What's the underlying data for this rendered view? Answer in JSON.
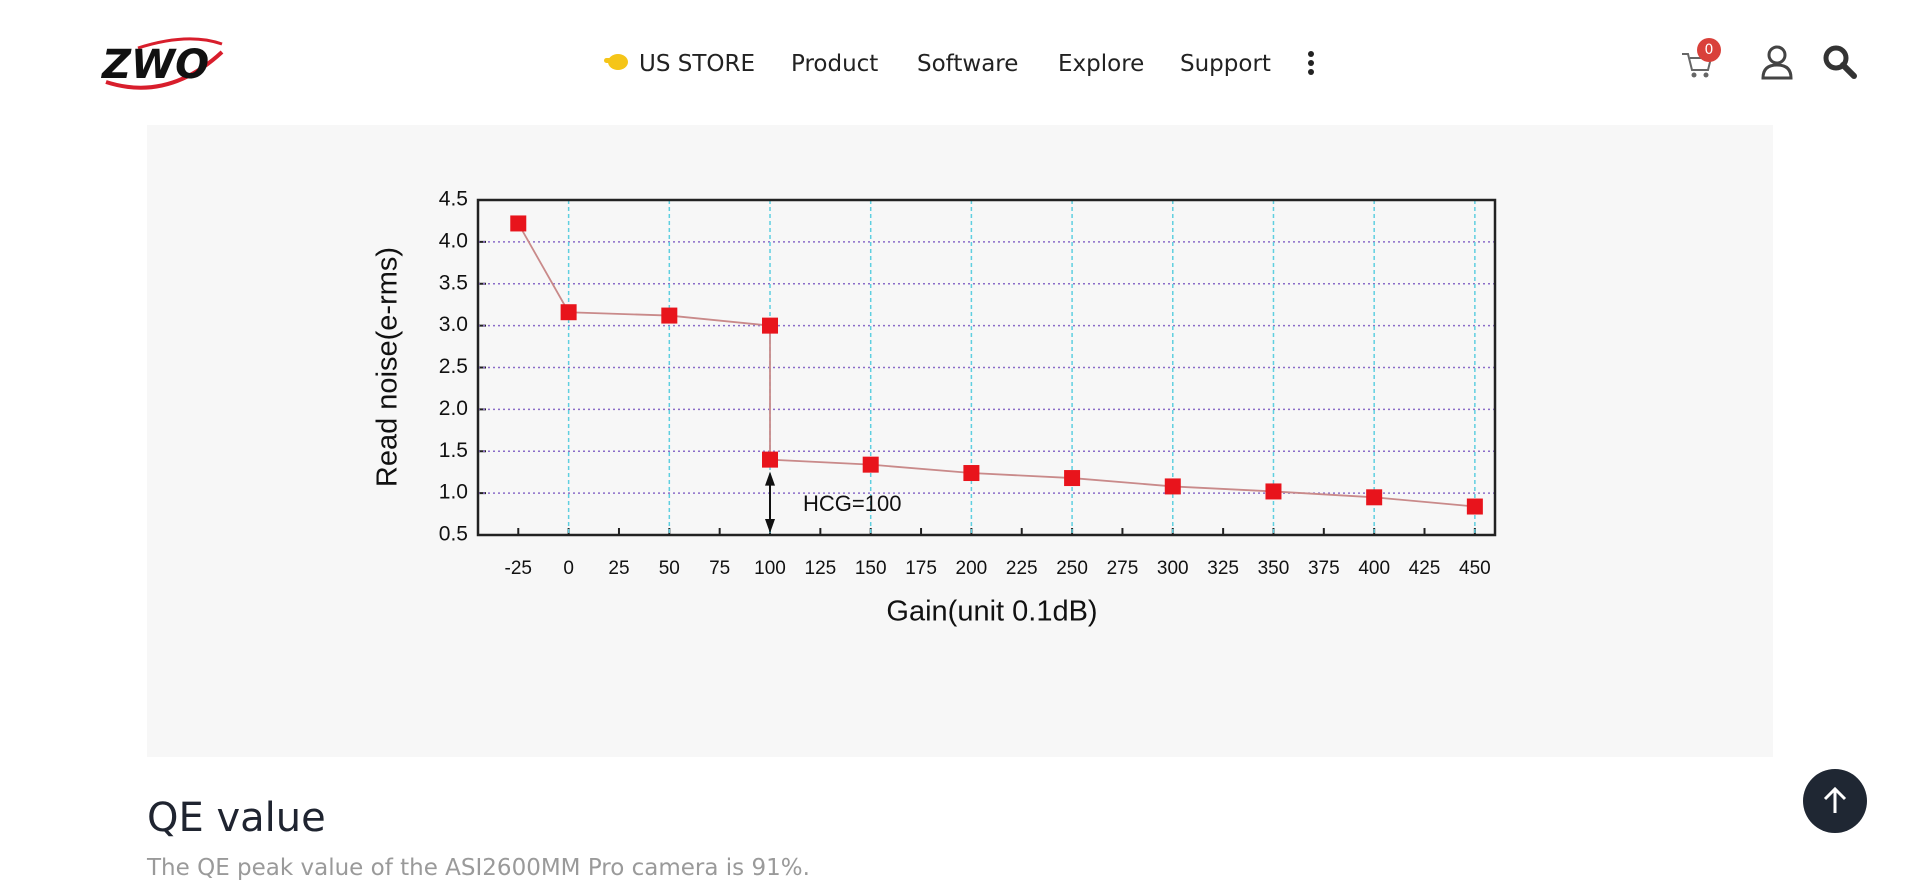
{
  "header": {
    "logo": "ZWO",
    "nav": [
      "US STORE",
      "Product",
      "Software",
      "Explore",
      "Support"
    ],
    "cart_count": "0"
  },
  "chart_data": {
    "type": "line",
    "x_label": "Gain(unit 0.1dB)",
    "y_label": "Read noise(e-rms)",
    "annotation": "HCG=100",
    "x": [
      -25,
      0,
      50,
      100,
      100,
      150,
      200,
      250,
      300,
      350,
      400,
      450
    ],
    "values": [
      4.22,
      3.16,
      3.12,
      3.0,
      1.4,
      1.34,
      1.24,
      1.18,
      1.08,
      1.02,
      0.95,
      0.84
    ],
    "color": "#e8141c",
    "line_color": "#c98a8a",
    "xlim": [
      -45,
      460
    ],
    "xticks": [
      -25,
      0,
      25,
      50,
      75,
      100,
      125,
      150,
      175,
      200,
      225,
      250,
      275,
      300,
      325,
      350,
      375,
      400,
      425,
      450
    ],
    "ylim": [
      0.5,
      4.5
    ],
    "yticks": [
      0.5,
      {
        "value": 1,
        "label": "1.0"
      },
      1.5,
      {
        "value": 2,
        "label": "2.0"
      },
      2.5,
      {
        "value": 3,
        "label": "3.0"
      },
      3.5,
      {
        "value": 4,
        "label": "4.0"
      },
      4.5
    ],
    "grid": true
  },
  "section": {
    "title": "QE value",
    "text": "The QE peak value of the ASI2600MM Pro camera is 91%."
  }
}
